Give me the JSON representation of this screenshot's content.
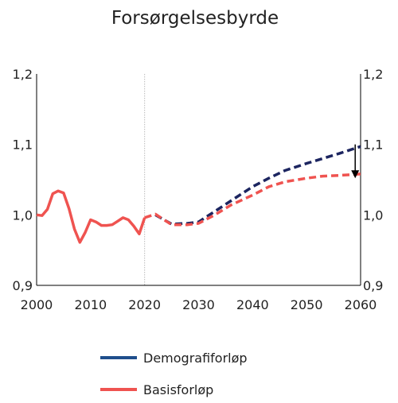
{
  "chart_data": {
    "type": "line",
    "title": "Forsørgelsesbyrde",
    "xlim": [
      2000,
      2060
    ],
    "ylim": [
      0.9,
      1.2
    ],
    "x_ticks": [
      "2000",
      "2010",
      "2020",
      "2030",
      "2040",
      "2050",
      "2060"
    ],
    "y_ticks_left": [
      "0,9",
      "1,0",
      "1,1",
      "1,2"
    ],
    "y_ticks_right": [
      "0,9",
      "1,0",
      "1,1",
      "1,2"
    ],
    "reference_line_x": 2020,
    "legend_position": "bottom",
    "series": [
      {
        "name": "Demografiforløp",
        "color": "#1c2560",
        "legend_color": "#1f4e8c",
        "style": "dashed",
        "x": [
          2022,
          2025,
          2028,
          2030,
          2033,
          2036,
          2040,
          2043,
          2046,
          2050,
          2053,
          2056,
          2060
        ],
        "y": [
          1.0,
          0.987,
          0.988,
          0.99,
          1.005,
          1.02,
          1.04,
          1.052,
          1.063,
          1.073,
          1.08,
          1.087,
          1.097
        ]
      },
      {
        "name": "Basisforløp",
        "color": "#ef5350",
        "legend_color": "#ef5350",
        "style": "solid_then_dashed",
        "x": [
          2000,
          2001,
          2002,
          2003,
          2004,
          2005,
          2006,
          2007,
          2008,
          2009,
          2010,
          2011,
          2012,
          2013,
          2014,
          2015,
          2016,
          2017,
          2018,
          2019,
          2020,
          2022,
          2025,
          2028,
          2030,
          2033,
          2036,
          2040,
          2043,
          2046,
          2050,
          2053,
          2056,
          2060
        ],
        "y": [
          1.0,
          0.999,
          1.008,
          1.03,
          1.034,
          1.031,
          1.009,
          0.98,
          0.961,
          0.975,
          0.993,
          0.99,
          0.985,
          0.985,
          0.986,
          0.991,
          0.996,
          0.993,
          0.984,
          0.973,
          0.996,
          1.001,
          0.986,
          0.986,
          0.988,
          1.0,
          1.014,
          1.028,
          1.04,
          1.047,
          1.052,
          1.055,
          1.056,
          1.058
        ]
      }
    ],
    "annotation": {
      "type": "arrow",
      "x": 2059,
      "y_from": 1.1,
      "y_to": 1.052
    }
  }
}
